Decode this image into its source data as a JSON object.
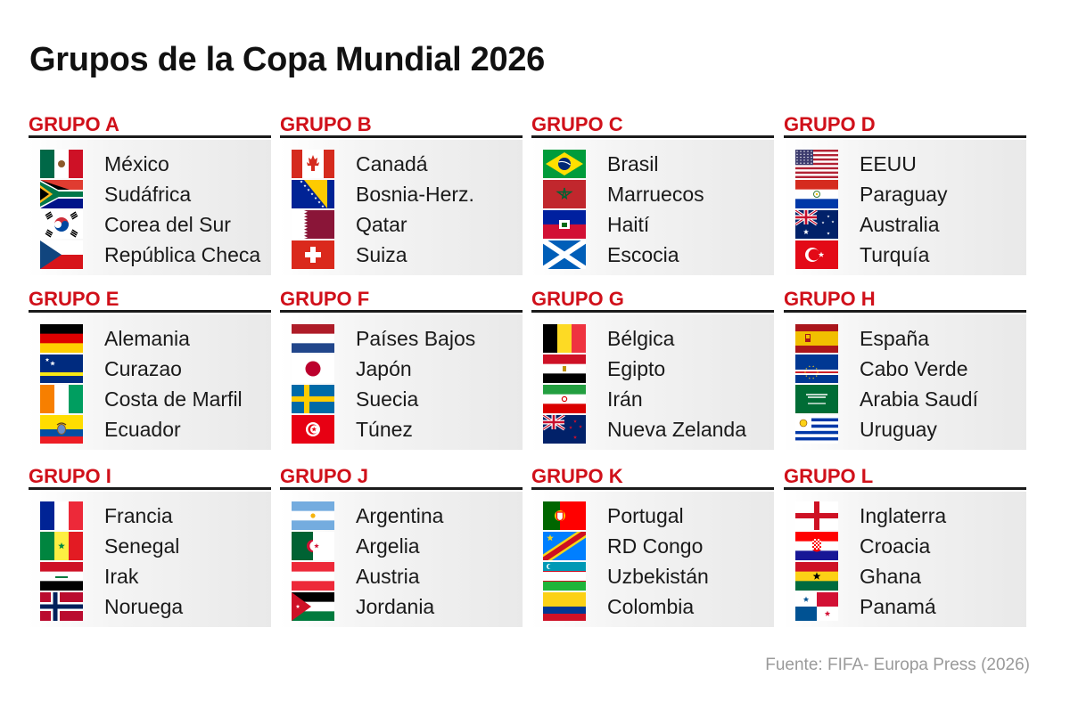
{
  "title": "Grupos de la Copa Mundial 2026",
  "source": "Fuente: FIFA- Europa Press (2026)",
  "colors": {
    "group_label": "#d0101a",
    "rule": "#1a1a1a",
    "panel": "#ececec"
  },
  "groups": [
    {
      "name": "GRUPO A",
      "teams": [
        {
          "name": "México",
          "flag": "mexico-flag-icon"
        },
        {
          "name": "Sudáfrica",
          "flag": "south-africa-flag-icon"
        },
        {
          "name": "Corea del Sur",
          "flag": "south-korea-flag-icon"
        },
        {
          "name": "República Checa",
          "flag": "czech-republic-flag-icon"
        }
      ]
    },
    {
      "name": "GRUPO B",
      "teams": [
        {
          "name": "Canadá",
          "flag": "canada-flag-icon"
        },
        {
          "name": "Bosnia-Herz.",
          "flag": "bosnia-flag-icon"
        },
        {
          "name": "Qatar",
          "flag": "qatar-flag-icon"
        },
        {
          "name": "Suiza",
          "flag": "switzerland-flag-icon"
        }
      ]
    },
    {
      "name": "GRUPO C",
      "teams": [
        {
          "name": "Brasil",
          "flag": "brazil-flag-icon"
        },
        {
          "name": "Marruecos",
          "flag": "morocco-flag-icon"
        },
        {
          "name": "Haití",
          "flag": "haiti-flag-icon"
        },
        {
          "name": "Escocia",
          "flag": "scotland-flag-icon"
        }
      ]
    },
    {
      "name": "GRUPO D",
      "teams": [
        {
          "name": "EEUU",
          "flag": "usa-flag-icon"
        },
        {
          "name": "Paraguay",
          "flag": "paraguay-flag-icon"
        },
        {
          "name": "Australia",
          "flag": "australia-flag-icon"
        },
        {
          "name": "Turquía",
          "flag": "turkey-flag-icon"
        }
      ]
    },
    {
      "name": "GRUPO E",
      "teams": [
        {
          "name": "Alemania",
          "flag": "germany-flag-icon"
        },
        {
          "name": "Curazao",
          "flag": "curacao-flag-icon"
        },
        {
          "name": "Costa de Marfil",
          "flag": "ivory-coast-flag-icon"
        },
        {
          "name": "Ecuador",
          "flag": "ecuador-flag-icon"
        }
      ]
    },
    {
      "name": "GRUPO F",
      "teams": [
        {
          "name": "Países Bajos",
          "flag": "netherlands-flag-icon"
        },
        {
          "name": "Japón",
          "flag": "japan-flag-icon"
        },
        {
          "name": "Suecia",
          "flag": "sweden-flag-icon"
        },
        {
          "name": "Túnez",
          "flag": "tunisia-flag-icon"
        }
      ]
    },
    {
      "name": "GRUPO G",
      "teams": [
        {
          "name": "Bélgica",
          "flag": "belgium-flag-icon"
        },
        {
          "name": "Egipto",
          "flag": "egypt-flag-icon"
        },
        {
          "name": "Irán",
          "flag": "iran-flag-icon"
        },
        {
          "name": "Nueva Zelanda",
          "flag": "new-zealand-flag-icon"
        }
      ]
    },
    {
      "name": "GRUPO H",
      "teams": [
        {
          "name": "España",
          "flag": "spain-flag-icon"
        },
        {
          "name": "Cabo Verde",
          "flag": "cape-verde-flag-icon"
        },
        {
          "name": "Arabia Saudí",
          "flag": "saudi-arabia-flag-icon"
        },
        {
          "name": "Uruguay",
          "flag": "uruguay-flag-icon"
        }
      ]
    },
    {
      "name": "GRUPO I",
      "teams": [
        {
          "name": "Francia",
          "flag": "france-flag-icon"
        },
        {
          "name": "Senegal",
          "flag": "senegal-flag-icon"
        },
        {
          "name": "Irak",
          "flag": "iraq-flag-icon"
        },
        {
          "name": "Noruega",
          "flag": "norway-flag-icon"
        }
      ]
    },
    {
      "name": "GRUPO J",
      "teams": [
        {
          "name": "Argentina",
          "flag": "argentina-flag-icon"
        },
        {
          "name": "Argelia",
          "flag": "algeria-flag-icon"
        },
        {
          "name": "Austria",
          "flag": "austria-flag-icon"
        },
        {
          "name": "Jordania",
          "flag": "jordan-flag-icon"
        }
      ]
    },
    {
      "name": "GRUPO K",
      "teams": [
        {
          "name": "Portugal",
          "flag": "portugal-flag-icon"
        },
        {
          "name": "RD Congo",
          "flag": "dr-congo-flag-icon"
        },
        {
          "name": "Uzbekistán",
          "flag": "uzbekistan-flag-icon"
        },
        {
          "name": "Colombia",
          "flag": "colombia-flag-icon"
        }
      ]
    },
    {
      "name": "GRUPO L",
      "teams": [
        {
          "name": "Inglaterra",
          "flag": "england-flag-icon"
        },
        {
          "name": "Croacia",
          "flag": "croatia-flag-icon"
        },
        {
          "name": "Ghana",
          "flag": "ghana-flag-icon"
        },
        {
          "name": "Panamá",
          "flag": "panama-flag-icon"
        }
      ]
    }
  ]
}
